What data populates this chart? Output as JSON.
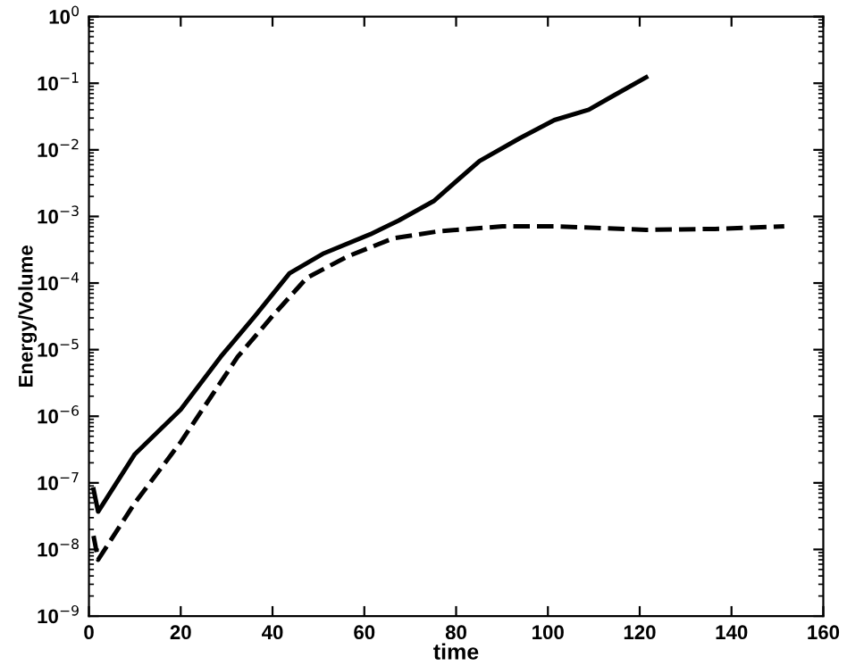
{
  "chart_data": {
    "type": "line",
    "xlabel": "time",
    "ylabel": "Energy/Volume",
    "log": "y",
    "grid": false,
    "marker": "none",
    "xlim": [
      0,
      160
    ],
    "xticks": [
      0,
      20,
      40,
      60,
      80,
      100,
      120,
      140,
      160
    ],
    "ylim": [
      1e-09,
      1
    ],
    "yticks": [
      {
        "value": 1e-09,
        "label": "10$^{−9}$"
      },
      {
        "value": 1e-08,
        "label": "10$^{−8}$"
      },
      {
        "value": 1e-07,
        "label": "10$^{−7}$"
      },
      {
        "value": 1e-06,
        "label": "10$^{−6}$"
      },
      {
        "value": 1e-05,
        "label": "10$^{−5}$"
      },
      {
        "value": 0.0001,
        "label": "10$^{−4}$"
      },
      {
        "value": 0.001,
        "label": "10$^{−3}$"
      },
      {
        "value": 0.01,
        "label": "10$^{−2}$"
      },
      {
        "value": 0.1,
        "label": "10$^{−1}$"
      },
      {
        "value": 1,
        "label": "10$^{0}$"
      }
    ],
    "series": [
      {
        "color": "#000000",
        "line_style": "solid",
        "x": [
          1,
          2,
          10,
          20,
          28.7,
          36.2,
          43.7,
          51.2,
          61.3,
          67.5,
          75.1,
          85.1,
          93.9,
          101.4,
          108.9,
          113.9,
          121.4
        ],
        "values": [
          8e-08,
          3.7e-08,
          2.7e-07,
          1.26e-06,
          7.8e-06,
          3.2e-05,
          0.00014,
          0.00028,
          0.00054,
          0.00087,
          0.0017,
          0.0068,
          0.015,
          0.028,
          0.04,
          0.063,
          0.123
        ]
      },
      {
        "color": "#000000",
        "line_style": "dashed",
        "x": [
          1,
          2,
          10,
          20,
          32.4,
          40,
          47.5,
          56.3,
          66.3,
          76.3,
          90.1,
          101.4,
          121.4,
          136.5,
          151.5
        ],
        "values": [
          1.6e-08,
          7e-09,
          5e-08,
          4.1e-07,
          7.8e-06,
          3.2e-05,
          0.00012,
          0.00025,
          0.00047,
          0.0006,
          0.00071,
          0.00071,
          0.00063,
          0.00065,
          0.00071
        ]
      }
    ]
  }
}
